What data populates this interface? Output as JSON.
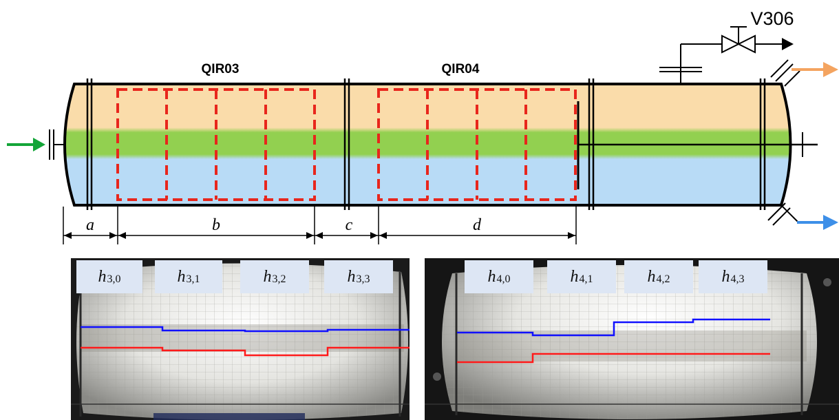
{
  "valve": {
    "label": "V306"
  },
  "sections": [
    {
      "name": "QIR03"
    },
    {
      "name": "QIR04"
    }
  ],
  "dimensions": [
    "a",
    "b",
    "c",
    "d"
  ],
  "phases": {
    "gas_color": "#fadcaa",
    "interface_color": "#92d050",
    "liquid_color": "#b8dbf6"
  },
  "arrows": {
    "inlet_color": "#13a538",
    "gas_out_color": "#f4a460",
    "liquid_out_color": "#3d8fe8",
    "vent_color": "#000000"
  },
  "window_color": "#e8261c",
  "photos": [
    {
      "id": "QIR03",
      "chips": [
        {
          "var": "h",
          "sub": "3,0"
        },
        {
          "var": "h",
          "sub": "3,1"
        },
        {
          "var": "h",
          "sub": "3,2"
        },
        {
          "var": "h",
          "sub": "3,3"
        }
      ]
    },
    {
      "id": "QIR04",
      "chips": [
        {
          "var": "h",
          "sub": "4,0"
        },
        {
          "var": "h",
          "sub": "4,1"
        },
        {
          "var": "h",
          "sub": "4,2"
        },
        {
          "var": "h",
          "sub": "4,3"
        }
      ]
    }
  ],
  "level_colors": {
    "upper": "#1010ff",
    "lower": "#ff1a1a"
  }
}
